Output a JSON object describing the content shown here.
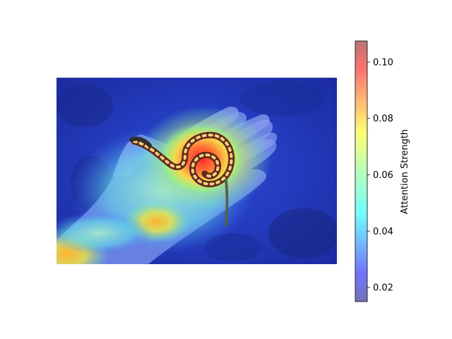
{
  "chart_data": {
    "type": "heatmap",
    "title": "",
    "colormap": "jet",
    "overlay_alpha": 0.5,
    "colorbar": {
      "label": "Attention Strength",
      "range": [
        0.015,
        0.1075
      ],
      "ticks": [
        0.02,
        0.04,
        0.06,
        0.08,
        0.1
      ],
      "tick_labels": [
        "0.02",
        "0.04",
        "0.06",
        "0.08",
        "0.10"
      ]
    },
    "heat_regions": [
      {
        "name": "snake-coil-center",
        "x": 0.5,
        "y": 0.45,
        "value": 0.107
      },
      {
        "name": "snake-coil-ring",
        "x": 0.52,
        "y": 0.42,
        "value": 0.085
      },
      {
        "name": "palm-lower",
        "x": 0.36,
        "y": 0.78,
        "value": 0.075
      },
      {
        "name": "wrist-bottom-left",
        "x": 0.05,
        "y": 0.95,
        "value": 0.075
      },
      {
        "name": "hand-body",
        "x": 0.35,
        "y": 0.58,
        "value": 0.055
      },
      {
        "name": "background",
        "x": 0.85,
        "y": 0.2,
        "value": 0.018
      }
    ]
  }
}
